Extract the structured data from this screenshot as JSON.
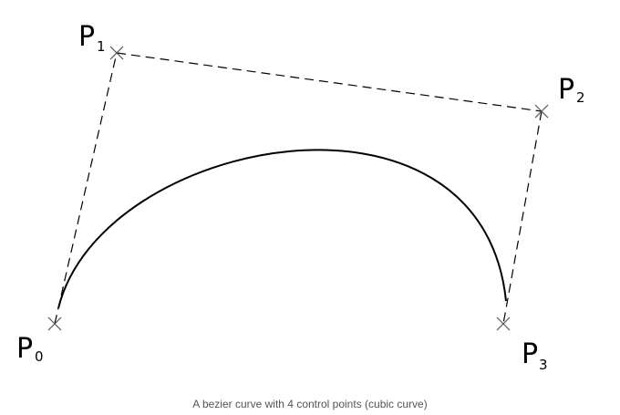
{
  "caption": "A bezier curve with 4 control points (cubic curve)",
  "points": [
    {
      "id": "p0",
      "letter": "P",
      "index": "0"
    },
    {
      "id": "p1",
      "letter": "P",
      "index": "1"
    },
    {
      "id": "p2",
      "letter": "P",
      "index": "2"
    },
    {
      "id": "p3",
      "letter": "P",
      "index": "3"
    }
  ],
  "colors": {
    "curve": "#000000",
    "guide": "#000000",
    "marker": "#555555",
    "caption": "#555555"
  }
}
